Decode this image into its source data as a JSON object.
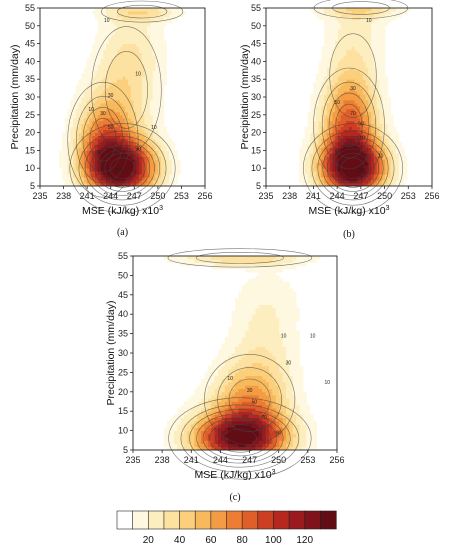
{
  "chart_data": [
    {
      "type": "heatmap",
      "caption": "(a)",
      "xlabel": "MSE (kJ/kg)",
      "xlabel_exponent": "x10",
      "xlabel_power": "3",
      "ylabel": "Precipitation (mm/day)",
      "xlim": [
        235,
        256
      ],
      "ylim": [
        5,
        55
      ],
      "xticks": [
        "235",
        "238",
        "241",
        "244",
        "247",
        "250",
        "253",
        "256"
      ],
      "yticks": [
        "5",
        "10",
        "15",
        "20",
        "25",
        "30",
        "35",
        "40",
        "45",
        "50",
        "55"
      ],
      "hotspots": [
        {
          "x": 245.5,
          "y": 10,
          "sx": 3.2,
          "sy": 6,
          "amp": 125
        },
        {
          "x": 243,
          "y": 18,
          "sx": 2.5,
          "sy": 9,
          "amp": 60
        },
        {
          "x": 246,
          "y": 32,
          "sx": 3,
          "sy": 12,
          "amp": 30
        },
        {
          "x": 247,
          "y": 45,
          "sx": 3,
          "sy": 8,
          "amp": 14
        },
        {
          "x": 248,
          "y": 54,
          "sx": 3.5,
          "sy": 2,
          "amp": 30
        }
      ],
      "contour_labels": [
        {
          "x": 243.5,
          "y": 51,
          "t": "10"
        },
        {
          "x": 247.5,
          "y": 36,
          "t": "10"
        },
        {
          "x": 244,
          "y": 30,
          "t": "30"
        },
        {
          "x": 241.5,
          "y": 26,
          "t": "10"
        },
        {
          "x": 243,
          "y": 25,
          "t": "30"
        },
        {
          "x": 244,
          "y": 21,
          "t": "50"
        },
        {
          "x": 249.5,
          "y": 21,
          "t": "10"
        },
        {
          "x": 242.5,
          "y": 14,
          "t": "70"
        },
        {
          "x": 247.5,
          "y": 15,
          "t": "30"
        },
        {
          "x": 245,
          "y": 9,
          "t": "110"
        }
      ]
    },
    {
      "type": "heatmap",
      "caption": "(b)",
      "xlabel": "MSE (kJ/kg)",
      "xlabel_exponent": "x10",
      "xlabel_power": "3",
      "ylabel": "Precipitation (mm/day)",
      "xlim": [
        235,
        256
      ],
      "ylim": [
        5,
        55
      ],
      "xticks": [
        "235",
        "238",
        "241",
        "244",
        "247",
        "250",
        "253",
        "256"
      ],
      "yticks": [
        "5",
        "10",
        "15",
        "20",
        "25",
        "30",
        "35",
        "40",
        "45",
        "50",
        "55"
      ],
      "hotspots": [
        {
          "x": 246,
          "y": 10,
          "sx": 3,
          "sy": 6,
          "amp": 130
        },
        {
          "x": 245.5,
          "y": 22,
          "sx": 2.5,
          "sy": 9,
          "amp": 70
        },
        {
          "x": 246,
          "y": 36,
          "sx": 2.5,
          "sy": 10,
          "amp": 25
        },
        {
          "x": 246.5,
          "y": 50,
          "sx": 3,
          "sy": 6,
          "amp": 14
        },
        {
          "x": 247,
          "y": 55,
          "sx": 4,
          "sy": 2,
          "amp": 30
        }
      ],
      "contour_labels": [
        {
          "x": 248,
          "y": 51,
          "t": "10"
        },
        {
          "x": 246,
          "y": 32,
          "t": "30"
        },
        {
          "x": 244,
          "y": 28,
          "t": "50"
        },
        {
          "x": 246,
          "y": 25,
          "t": "70"
        },
        {
          "x": 247,
          "y": 22,
          "t": "90"
        },
        {
          "x": 247,
          "y": 18,
          "t": "110"
        },
        {
          "x": 244,
          "y": 14,
          "t": "30"
        },
        {
          "x": 249.5,
          "y": 13,
          "t": "10"
        },
        {
          "x": 247,
          "y": 9,
          "t": "110"
        }
      ]
    },
    {
      "type": "heatmap",
      "caption": "(c)",
      "xlabel": "MSE (kJ/kg)",
      "xlabel_exponent": "x10",
      "xlabel_power": "3",
      "ylabel": "Precipitation (mm/day)",
      "xlim": [
        235,
        256
      ],
      "ylim": [
        5,
        55
      ],
      "xticks": [
        "235",
        "238",
        "241",
        "244",
        "247",
        "250",
        "253",
        "256"
      ],
      "yticks": [
        "5",
        "10",
        "15",
        "20",
        "25",
        "30",
        "35",
        "40",
        "45",
        "50",
        "55"
      ],
      "hotspots": [
        {
          "x": 246,
          "y": 8,
          "sx": 3.5,
          "sy": 5,
          "amp": 125
        },
        {
          "x": 247,
          "y": 18,
          "sx": 2.8,
          "sy": 7,
          "amp": 55
        },
        {
          "x": 248.5,
          "y": 32,
          "sx": 2.5,
          "sy": 9,
          "amp": 22
        },
        {
          "x": 249,
          "y": 45,
          "sx": 3,
          "sy": 6,
          "amp": 10
        },
        {
          "x": 246,
          "y": 54.5,
          "sx": 5,
          "sy": 1.6,
          "amp": 35
        }
      ],
      "contour_labels": [
        {
          "x": 250.5,
          "y": 34,
          "t": "10"
        },
        {
          "x": 253.5,
          "y": 34,
          "t": "10"
        },
        {
          "x": 251,
          "y": 27,
          "t": "30"
        },
        {
          "x": 245,
          "y": 23,
          "t": "10"
        },
        {
          "x": 247,
          "y": 20,
          "t": "30"
        },
        {
          "x": 247.5,
          "y": 17,
          "t": "50"
        },
        {
          "x": 248.5,
          "y": 13,
          "t": "70"
        },
        {
          "x": 255,
          "y": 22,
          "t": "10"
        },
        {
          "x": 250,
          "y": 9,
          "t": "90"
        }
      ]
    }
  ],
  "colorbar": {
    "levels": [
      0,
      10,
      20,
      30,
      40,
      50,
      60,
      70,
      80,
      90,
      100,
      110,
      120,
      130,
      140
    ],
    "colors": [
      "#ffffff",
      "#fff8e1",
      "#fdeec0",
      "#fce1a0",
      "#fbcf7c",
      "#f8b95c",
      "#f39c43",
      "#ed7d33",
      "#e05e2a",
      "#cc3f23",
      "#b6271f",
      "#9a1a1e",
      "#7e131b",
      "#620c15"
    ],
    "tick_labels": [
      {
        "value": 20,
        "label": "20"
      },
      {
        "value": 40,
        "label": "40"
      },
      {
        "value": 60,
        "label": "60"
      },
      {
        "value": 80,
        "label": "80"
      },
      {
        "value": 100,
        "label": "100"
      },
      {
        "value": 120,
        "label": "120"
      }
    ]
  }
}
